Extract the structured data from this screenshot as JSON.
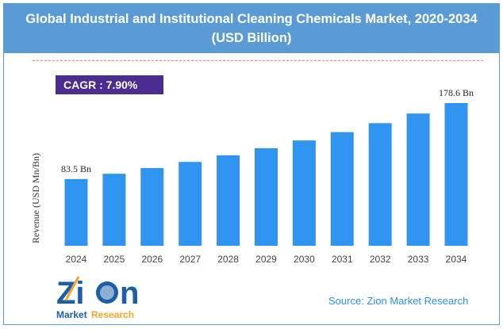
{
  "chart_data": {
    "type": "bar",
    "title": "Global Industrial and Institutional Cleaning Chemicals Market, 2020-2034",
    "subtitle": "(USD Billion)",
    "ylabel": "Revenue (USD Mn/Bn)",
    "xlabel": "",
    "categories": [
      "2024",
      "2025",
      "2026",
      "2027",
      "2028",
      "2029",
      "2030",
      "2031",
      "2032",
      "2033",
      "2034"
    ],
    "values": [
      83.5,
      90.1,
      97.2,
      104.9,
      113.2,
      122.1,
      131.8,
      142.2,
      153.4,
      165.5,
      178.6
    ],
    "data_labels": {
      "first": "83.5 Bn",
      "last": "178.6 Bn"
    },
    "ylim": [
      0,
      190
    ],
    "grid": false,
    "bar_color": "#2f95f0"
  },
  "cagr_label": "CAGR :  7.90%",
  "source": "Source: Zion Market Research",
  "logo": {
    "text": "Zion",
    "subtext_1": "Market",
    "subtext_2": "Research"
  },
  "colors": {
    "header": "#5b9bd5",
    "cagr_bg": "#4b2c91",
    "dash": "#f58a4b",
    "source": "#2e8fe8"
  }
}
